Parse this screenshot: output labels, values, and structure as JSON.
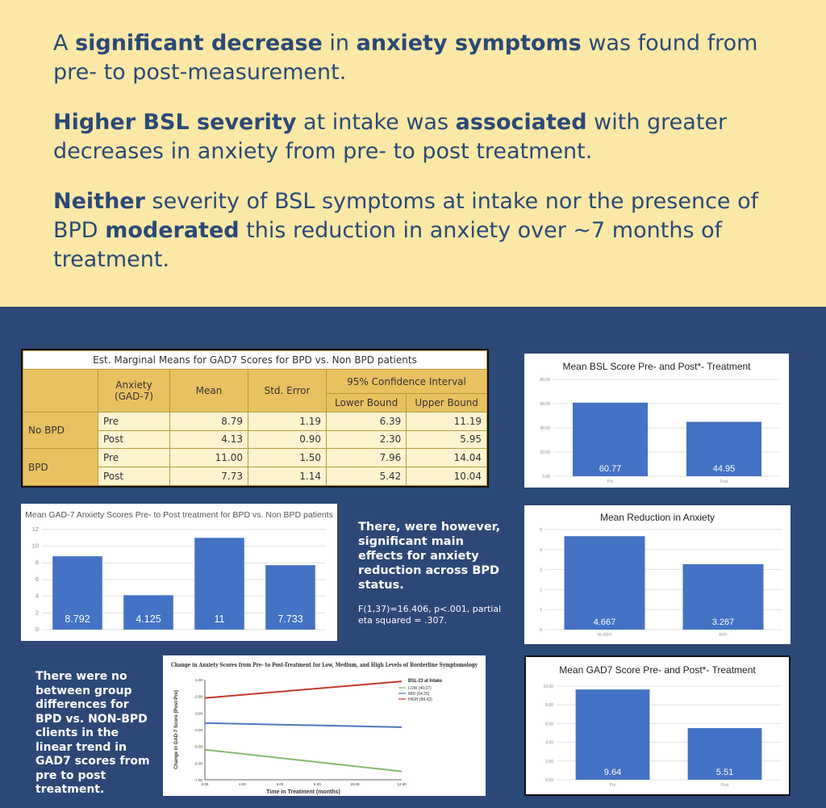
{
  "findings": [
    {
      "parts": [
        {
          "t": "A ",
          "b": false
        },
        {
          "t": "significant decrease",
          "b": true
        },
        {
          "t": " in ",
          "b": false
        },
        {
          "t": "anxiety symptoms",
          "b": true
        },
        {
          "t": " was found from pre- to post-measurement.",
          "b": false
        }
      ]
    },
    {
      "parts": [
        {
          "t": "Higher BSL severity",
          "b": true
        },
        {
          "t": " at intake was ",
          "b": false
        },
        {
          "t": "associated",
          "b": true
        },
        {
          "t": " with greater decreases in anxiety from pre- to post treatment.",
          "b": false
        }
      ]
    },
    {
      "parts": [
        {
          "t": "Neither",
          "b": true
        },
        {
          "t": " severity of BSL symptoms at intake nor the presence of BPD ",
          "b": false
        },
        {
          "t": "moderated",
          "b": true
        },
        {
          "t": " this reduction in anxiety over ~7 months of treatment.",
          "b": false
        }
      ]
    }
  ],
  "table": {
    "caption": "Est. Marginal Means for GAD7 Scores for BPD vs. Non BPD patients",
    "head": {
      "anxiety": "Anxiety (GAD-7)",
      "mean": "Mean",
      "se": "Std. Error",
      "ci": "95% Confidence Interval",
      "lower": "Lower Bound",
      "upper": "Upper Bound"
    },
    "groups": [
      {
        "label": "No BPD",
        "rows": [
          {
            "time": "Pre",
            "mean": "8.79",
            "se": "1.19",
            "lower": "6.39",
            "upper": "11.19"
          },
          {
            "time": "Post",
            "mean": "4.13",
            "se": "0.90",
            "lower": "2.30",
            "upper": "5.95"
          }
        ]
      },
      {
        "label": "BPD",
        "rows": [
          {
            "time": "Pre",
            "mean": "11.00",
            "se": "1.50",
            "lower": "7.96",
            "upper": "14.04"
          },
          {
            "time": "Post",
            "mean": "7.73",
            "se": "1.14",
            "lower": "5.42",
            "upper": "10.04"
          }
        ]
      }
    ]
  },
  "text_main_effects": "There, were however, significant main effects for anxiety reduction across BPD status.",
  "text_stats": "F(1,37)=16.406, p<.001, partial eta squared = .307.",
  "text_no_diff": "There were no between group differences for BPD vs. NON-BPD clients in the linear trend in GAD7 scores from pre to post treatment.",
  "chart_data": [
    {
      "id": "bsl",
      "type": "bar",
      "title": "Mean BSL Score Pre- and Post*- Treatment",
      "categories": [
        "Pre",
        "Post"
      ],
      "values": [
        60.77,
        44.95
      ],
      "labels": [
        "60.77",
        "44.95"
      ],
      "ylim": [
        0,
        80
      ],
      "yticks": [
        0,
        20,
        40,
        60,
        80
      ],
      "tick_labels": [
        "0.00",
        "20.00",
        "40.00",
        "60.00",
        "80.00"
      ],
      "color": "#4472c4"
    },
    {
      "id": "gad_bpd",
      "type": "bar",
      "title": "Mean GAD-7 Anxiety Scores Pre- to Post treatment for BPD vs. Non BPD patients",
      "categories": [
        "",
        "",
        "",
        ""
      ],
      "values": [
        8.792,
        4.125,
        11,
        7.733
      ],
      "labels": [
        "8.792",
        "4.125",
        "11",
        "7.733"
      ],
      "ylim": [
        0,
        12
      ],
      "yticks": [
        0,
        2,
        4,
        6,
        8,
        10,
        12
      ],
      "tick_labels": [
        "0",
        "2",
        "4",
        "6",
        "8",
        "10",
        "12"
      ],
      "color": "#4472c4"
    },
    {
      "id": "reduction",
      "type": "bar",
      "title": "Mean Reduction in Anxiety",
      "categories": [
        "No BPD",
        "BPD"
      ],
      "values": [
        4.667,
        3.267
      ],
      "labels": [
        "4.667",
        "3.267"
      ],
      "ylim": [
        0,
        5
      ],
      "yticks": [
        0,
        1,
        2,
        3,
        4,
        5
      ],
      "tick_labels": [
        "0",
        "1",
        "2",
        "3",
        "4",
        "5"
      ],
      "color": "#4472c4"
    },
    {
      "id": "gad7",
      "type": "bar",
      "title": "Mean GAD7 Score Pre- and Post*- Treatment",
      "categories": [
        "Pre",
        "Post"
      ],
      "values": [
        9.64,
        5.51
      ],
      "labels": [
        "9.64",
        "5.51"
      ],
      "ylim": [
        0,
        10
      ],
      "yticks": [
        0,
        2,
        4,
        6,
        8,
        10
      ],
      "tick_labels": [
        "0.00",
        "2.00",
        "4.00",
        "6.00",
        "8.00",
        "10.00"
      ],
      "color": "#4472c4"
    },
    {
      "id": "bsl_change",
      "type": "line",
      "title": "Change in Anxiety Scores from Pre- to Post-Treatment for Low, Medium, and High Levels of Borderline Symptomology",
      "xlabel": "Time in Treatment (months)",
      "ylabel": "Change in GAD-7 Score (Post-Pre)",
      "xlim": [
        2,
        12.5
      ],
      "ylim": [
        -7,
        -1
      ],
      "xticks": [
        2,
        4,
        6,
        8,
        10,
        12.5
      ],
      "xtick_labels": [
        "2.00",
        "4.00",
        "6.00",
        "8.00",
        "10.00",
        "12.50"
      ],
      "yticks": [
        -1,
        -2,
        -3,
        -4,
        -5,
        -6,
        -7
      ],
      "ytick_labels": [
        "-1.00",
        "-2.00",
        "-3.00",
        "-4.00",
        "-5.00",
        "-6.00",
        "-7.00"
      ],
      "legend_title": "BSL-23 at Intake",
      "series": [
        {
          "name": "LOW (40.07)",
          "color": "#86b870",
          "x": [
            2,
            12.5
          ],
          "y": [
            -5.2,
            -6.5
          ]
        },
        {
          "name": "MID (64.25)",
          "color": "#4a7ab8",
          "x": [
            2,
            12.5
          ],
          "y": [
            -3.6,
            -3.85
          ]
        },
        {
          "name": "HIGH (88.43)",
          "color": "#c0392b",
          "x": [
            2,
            12.5
          ],
          "y": [
            -2.1,
            -1.1
          ]
        }
      ]
    }
  ]
}
